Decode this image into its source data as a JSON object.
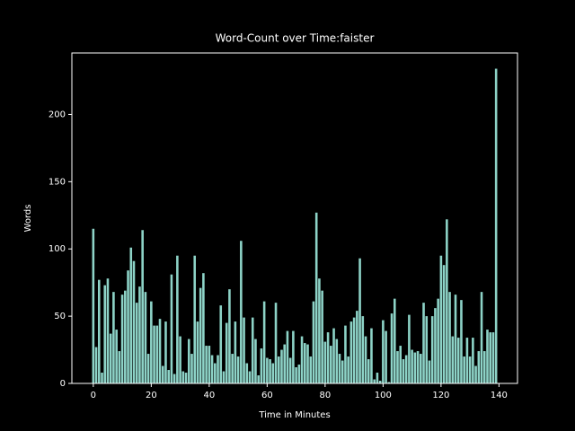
{
  "chart_data": {
    "type": "bar",
    "title": "Word-Count over Time:faister",
    "x_label": "Time in Minutes",
    "y_label": "Words",
    "x": [
      0,
      1,
      2,
      3,
      4,
      5,
      6,
      7,
      8,
      9,
      10,
      11,
      12,
      13,
      14,
      15,
      16,
      17,
      18,
      19,
      20,
      21,
      22,
      23,
      24,
      25,
      26,
      27,
      28,
      29,
      30,
      31,
      32,
      33,
      34,
      35,
      36,
      37,
      38,
      39,
      40,
      41,
      42,
      43,
      44,
      45,
      46,
      47,
      48,
      49,
      50,
      51,
      52,
      53,
      54,
      55,
      56,
      57,
      58,
      59,
      60,
      61,
      62,
      63,
      64,
      65,
      66,
      67,
      68,
      69,
      70,
      71,
      72,
      73,
      74,
      75,
      76,
      77,
      78,
      79,
      80,
      81,
      82,
      83,
      84,
      85,
      86,
      87,
      88,
      89,
      90,
      91,
      92,
      93,
      94,
      95,
      96,
      97,
      98,
      99,
      100,
      101,
      102,
      103,
      104,
      105,
      106,
      107,
      108,
      109,
      110,
      111,
      112,
      113,
      114,
      115,
      116,
      117,
      118,
      119,
      120,
      121,
      122,
      123,
      124,
      125,
      126,
      127,
      128,
      129,
      130,
      131,
      132,
      133,
      134,
      135,
      136,
      137,
      138,
      139
    ],
    "values": [
      115,
      27,
      77,
      8,
      73,
      78,
      37,
      68,
      40,
      24,
      66,
      69,
      84,
      101,
      91,
      60,
      72,
      114,
      68,
      22,
      61,
      43,
      43,
      48,
      13,
      46,
      10,
      81,
      7,
      95,
      35,
      9,
      8,
      33,
      22,
      95,
      46,
      71,
      82,
      28,
      28,
      21,
      15,
      21,
      58,
      9,
      45,
      70,
      22,
      46,
      20,
      106,
      49,
      15,
      9,
      49,
      33,
      6,
      26,
      61,
      19,
      18,
      15,
      60,
      20,
      25,
      29,
      39,
      19,
      39,
      12,
      14,
      35,
      30,
      29,
      20,
      61,
      127,
      78,
      69,
      31,
      38,
      28,
      41,
      33,
      22,
      17,
      43,
      20,
      46,
      49,
      54,
      93,
      50,
      35,
      18,
      41,
      3,
      8,
      2,
      47,
      39,
      1,
      52,
      63,
      24,
      28,
      18,
      21,
      51,
      25,
      23,
      24,
      22,
      60,
      50,
      17,
      50,
      56,
      63,
      95,
      88,
      122,
      68,
      35,
      66,
      34,
      62,
      20,
      34,
      20,
      34,
      13,
      24,
      68,
      24,
      40,
      38,
      38,
      234
    ],
    "color": "#8dd3c7",
    "xlim": [
      -7.39,
      146.39
    ],
    "ylim": [
      0,
      245.7
    ],
    "xticks": [
      0,
      20,
      40,
      60,
      80,
      100,
      120,
      140
    ],
    "yticks": [
      0,
      50,
      100,
      150,
      200
    ]
  }
}
